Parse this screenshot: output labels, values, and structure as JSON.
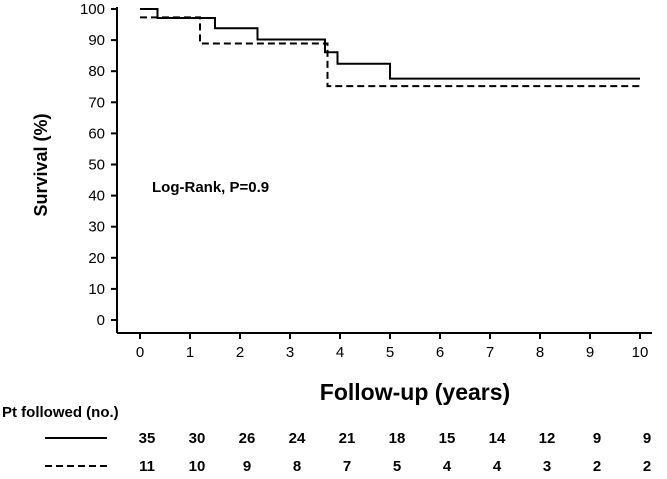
{
  "chart_data": {
    "type": "line",
    "step": true,
    "ylabel": "Survival (%)",
    "xlabel": "Follow-up (years)",
    "xlim": [
      0,
      10
    ],
    "ylim": [
      0,
      100
    ],
    "xticks": [
      0,
      1,
      2,
      3,
      4,
      5,
      6,
      7,
      8,
      9,
      10
    ],
    "yticks": [
      0,
      10,
      20,
      30,
      40,
      50,
      60,
      70,
      80,
      90,
      100
    ],
    "grid": false,
    "annotation": "Log-Rank, P=0.9",
    "series": [
      {
        "style": "solid",
        "points": [
          [
            0,
            100
          ],
          [
            0.35,
            97.1
          ],
          [
            1.5,
            93.8
          ],
          [
            2.35,
            90.2
          ],
          [
            3.7,
            86.1
          ],
          [
            3.95,
            82.4
          ],
          [
            5.0,
            77.6
          ],
          [
            10,
            77.6
          ]
        ]
      },
      {
        "style": "dashed",
        "points": [
          [
            0,
            97.3
          ],
          [
            1.2,
            88.9
          ],
          [
            3.75,
            75.2
          ],
          [
            10,
            75.2
          ]
        ]
      }
    ],
    "risk_table": {
      "title": "Pt followed (no.)",
      "rows": [
        {
          "style": "solid",
          "values": [
            "35",
            "30",
            "26",
            "24",
            "21",
            "18",
            "15",
            "14",
            "12",
            "9",
            "9"
          ]
        },
        {
          "style": "dashed",
          "values": [
            "11",
            "10",
            "9",
            "8",
            "7",
            "5",
            "4",
            "4",
            "3",
            "2",
            "2"
          ]
        }
      ]
    }
  }
}
